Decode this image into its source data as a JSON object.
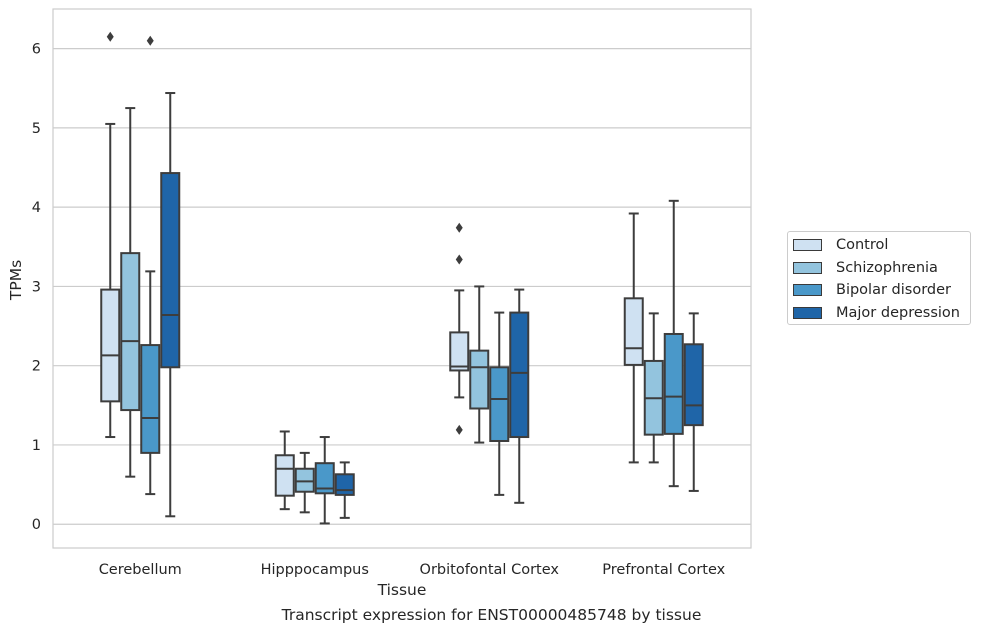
{
  "chart_data": {
    "type": "box",
    "caption": "Transcript expression for ENST00000485748 by tissue",
    "xlabel": "Tissue",
    "ylabel": "TPMs",
    "ylim": [
      -0.3,
      6.5
    ],
    "yticks": [
      0,
      1,
      2,
      3,
      4,
      5,
      6
    ],
    "grid": "horizontal",
    "legend_position": "right",
    "categories": [
      "Cerebellum",
      "Hipppocampus",
      "Orbitofontal Cortex",
      "Prefrontal Cortex"
    ],
    "series": [
      {
        "name": "Control",
        "color": "#cfe1f2",
        "boxes": [
          {
            "whislo": 1.1,
            "q1": 1.55,
            "med": 2.13,
            "q3": 2.96,
            "whishi": 5.05,
            "fliers": [
              6.15
            ]
          },
          {
            "whislo": 0.19,
            "q1": 0.36,
            "med": 0.7,
            "q3": 0.87,
            "whishi": 1.17,
            "fliers": []
          },
          {
            "whislo": 1.6,
            "q1": 1.94,
            "med": 1.99,
            "q3": 2.42,
            "whishi": 2.95,
            "fliers": [
              1.19,
              3.34,
              3.74
            ]
          },
          {
            "whislo": 0.78,
            "q1": 2.01,
            "med": 2.22,
            "q3": 2.85,
            "whishi": 3.92,
            "fliers": []
          }
        ]
      },
      {
        "name": "Schizophrenia",
        "color": "#93c4de",
        "boxes": [
          {
            "whislo": 0.6,
            "q1": 1.44,
            "med": 2.31,
            "q3": 3.42,
            "whishi": 5.25,
            "fliers": []
          },
          {
            "whislo": 0.15,
            "q1": 0.41,
            "med": 0.54,
            "q3": 0.7,
            "whishi": 0.9,
            "fliers": []
          },
          {
            "whislo": 1.03,
            "q1": 1.46,
            "med": 1.98,
            "q3": 2.19,
            "whishi": 3.0,
            "fliers": []
          },
          {
            "whislo": 0.78,
            "q1": 1.13,
            "med": 1.59,
            "q3": 2.06,
            "whishi": 2.66,
            "fliers": []
          }
        ]
      },
      {
        "name": "Bipolar disorder",
        "color": "#4a98c9",
        "boxes": [
          {
            "whislo": 0.38,
            "q1": 0.9,
            "med": 1.34,
            "q3": 2.26,
            "whishi": 3.19,
            "fliers": [
              6.1
            ]
          },
          {
            "whislo": 0.01,
            "q1": 0.39,
            "med": 0.45,
            "q3": 0.77,
            "whishi": 1.1,
            "fliers": []
          },
          {
            "whislo": 0.37,
            "q1": 1.05,
            "med": 1.58,
            "q3": 1.98,
            "whishi": 2.67,
            "fliers": []
          },
          {
            "whislo": 0.48,
            "q1": 1.14,
            "med": 1.61,
            "q3": 2.4,
            "whishi": 4.08,
            "fliers": []
          }
        ]
      },
      {
        "name": "Major depression",
        "color": "#1f65a8",
        "boxes": [
          {
            "whislo": 0.1,
            "q1": 1.98,
            "med": 2.64,
            "q3": 4.43,
            "whishi": 5.44,
            "fliers": []
          },
          {
            "whislo": 0.08,
            "q1": 0.37,
            "med": 0.43,
            "q3": 0.63,
            "whishi": 0.78,
            "fliers": []
          },
          {
            "whislo": 0.27,
            "q1": 1.1,
            "med": 1.91,
            "q3": 2.67,
            "whishi": 2.96,
            "fliers": []
          },
          {
            "whislo": 0.42,
            "q1": 1.25,
            "med": 1.5,
            "q3": 2.27,
            "whishi": 2.66,
            "fliers": []
          }
        ]
      }
    ]
  }
}
